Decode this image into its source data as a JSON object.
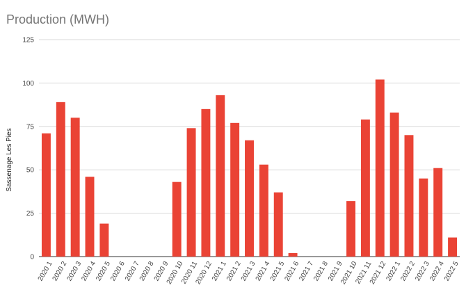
{
  "chart_data": {
    "type": "bar",
    "title": "Production (MWH)",
    "ylabel": "Sassenage Les Pies",
    "xlabel": "",
    "ylim": [
      0,
      125
    ],
    "yticks": [
      0,
      25,
      50,
      75,
      100,
      125
    ],
    "grid": true,
    "bar_color": "#ea4335",
    "categories": [
      "2020 1",
      "2020 2",
      "2020 3",
      "2020 4",
      "2020 5",
      "2020 6",
      "2020 7",
      "2020 8",
      "2020 9",
      "2020 10",
      "2020 11",
      "2020 12",
      "2021 1",
      "2021 2",
      "2021 3",
      "2021 4",
      "2021 5",
      "2021 6",
      "2021 7",
      "2021 8",
      "2021 9",
      "2021 10",
      "2021 11",
      "2021 12",
      "2022 1",
      "2022 2",
      "2022 3",
      "2022 4",
      "2022 5"
    ],
    "values": [
      71,
      89,
      80,
      46,
      19,
      0,
      0,
      0,
      0,
      43,
      74,
      85,
      93,
      77,
      67,
      53,
      37,
      2,
      0,
      0,
      0,
      32,
      79,
      102,
      83,
      70,
      45,
      51,
      11
    ]
  }
}
